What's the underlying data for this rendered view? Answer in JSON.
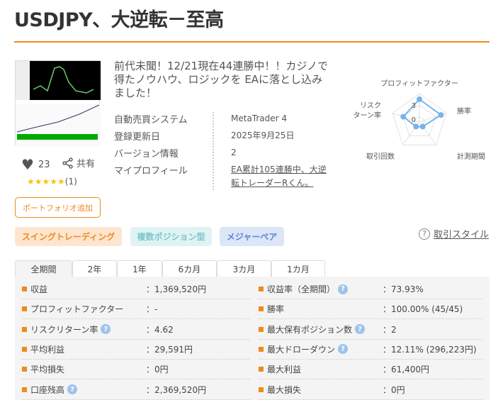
{
  "title": "USDJPY、大逆転－至高",
  "description": "前代未聞！12/21現在44連勝中！！カジノで得たノウハウ、ロジックを EAに落とし込みました！",
  "likes": "23",
  "share_label": "共有",
  "rating": {
    "stars": 5,
    "count": "(1)",
    "star_text": "★★★★★"
  },
  "portfolio_button": "ポートフォリオ追加",
  "info": [
    {
      "key": "自動売買システム",
      "value": "MetaTrader 4"
    },
    {
      "key": "登録更新日",
      "value": "2025年9月25日"
    },
    {
      "key": "バージョン情報",
      "value": "2"
    },
    {
      "key": "マイプロフィール",
      "value": "EA累計105連勝中、大逆転トレーダーRくん。"
    }
  ],
  "radar": {
    "axes": [
      "プロフィットファクター",
      "勝率",
      "計測期間",
      "取引回数",
      "リスクリターン率"
    ],
    "axis_label_lines": {
      "risk1": "リスク",
      "risk2": "ターン率"
    },
    "ticks": [
      "0",
      "3"
    ],
    "max": 5,
    "values": [
      4,
      4,
      1,
      1,
      3
    ],
    "color": "#7ab3ea"
  },
  "tags": [
    {
      "label": "スイングトレーディング",
      "color": "#f08a1c",
      "bg": "#fde5cf"
    },
    {
      "label": "複数ポジション型",
      "color": "#7cc6cc",
      "bg": "#e0f3f4"
    },
    {
      "label": "メジャーペア",
      "color": "#5a86d6",
      "bg": "#dce6f7"
    }
  ],
  "style_link": "取引スタイル",
  "tabs": [
    "全期間",
    "2年",
    "1年",
    "6カ月",
    "3カ月",
    "1カ月"
  ],
  "active_tab": "全期間",
  "stats_left": [
    {
      "label": "収益",
      "value": "：1,369,520円",
      "help": false
    },
    {
      "label": "プロフィットファクター",
      "value": "：-",
      "help": false
    },
    {
      "label": "リスクリターン率",
      "value": "：4.62",
      "help": true
    },
    {
      "label": "平均利益",
      "value": "：29,591円",
      "help": false
    },
    {
      "label": "平均損失",
      "value": "：0円",
      "help": false
    },
    {
      "label": "口座残高",
      "value": "：2,369,520円",
      "help": true
    }
  ],
  "stats_right": [
    {
      "label": "収益率（全期間）",
      "value": "：73.93%",
      "help": true
    },
    {
      "label": "勝率",
      "value": "：100.00% (45/45)",
      "help": false
    },
    {
      "label": "最大保有ポジション数",
      "value": "：2",
      "help": true
    },
    {
      "label": "最大ドローダウン",
      "value": "：12.11% (296,223円)",
      "help": true
    },
    {
      "label": "最大利益",
      "value": "：61,400円",
      "help": false
    },
    {
      "label": "最大損失",
      "value": "：0円",
      "help": false
    }
  ]
}
